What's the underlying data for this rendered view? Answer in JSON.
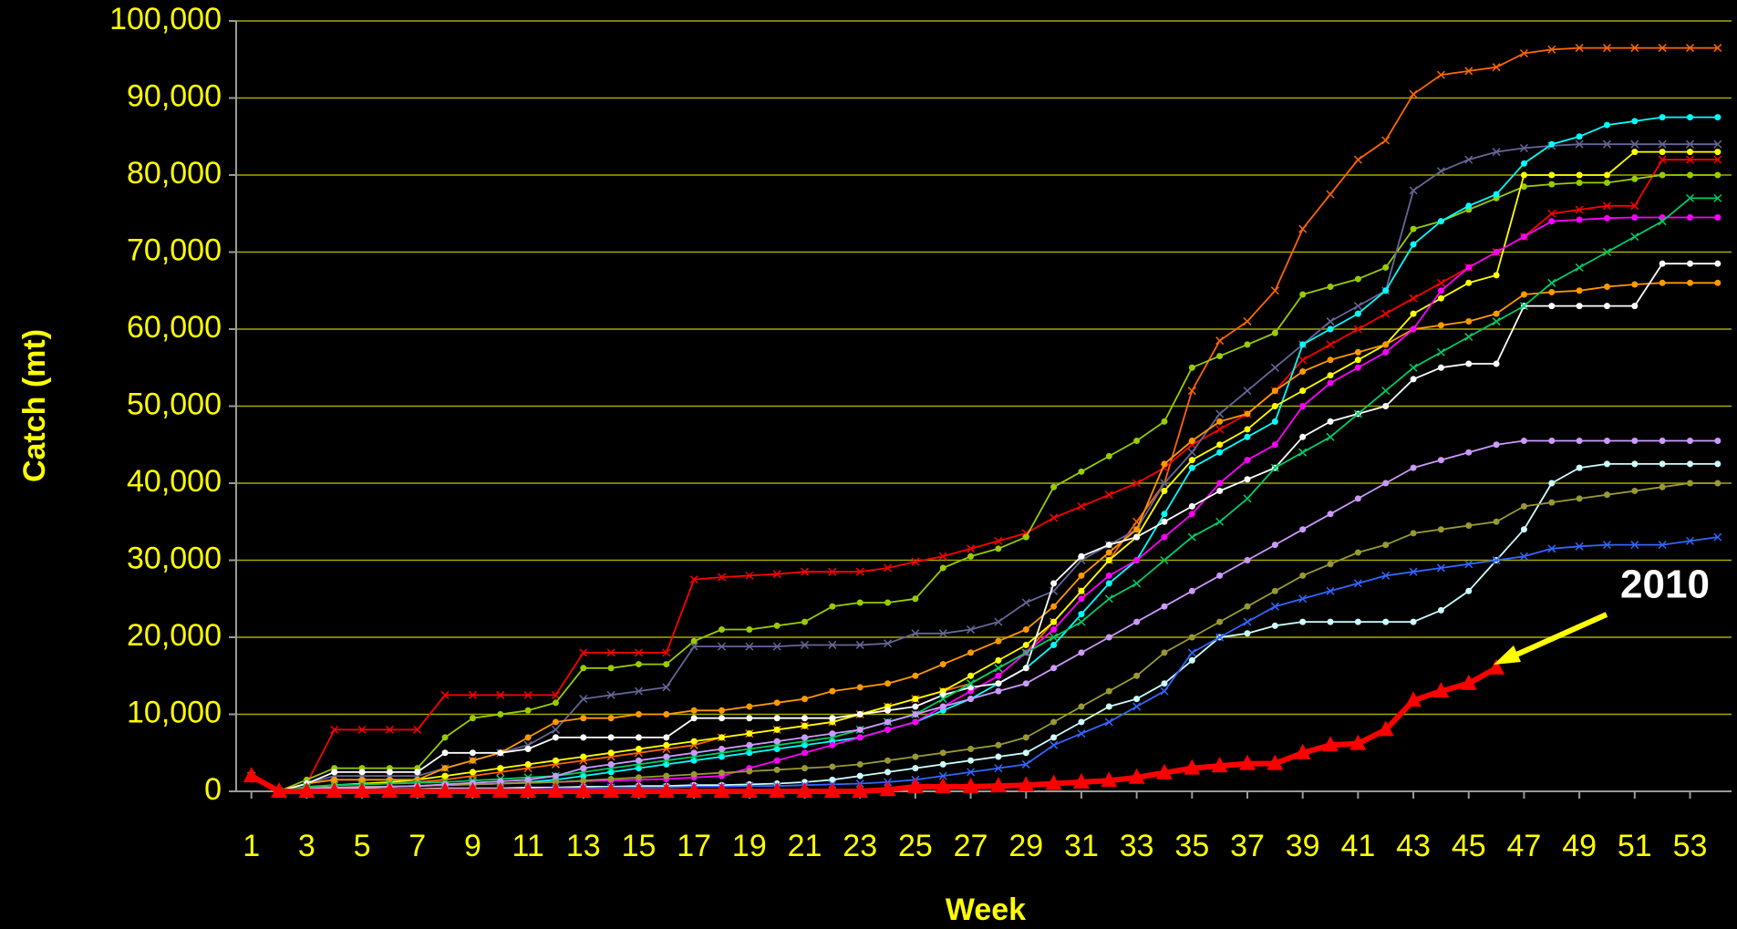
{
  "chart_data": {
    "type": "line",
    "ylabel": "Catch (mt)",
    "xlabel": "Week",
    "annotations": [
      {
        "text": "2010"
      }
    ],
    "grid": true,
    "x": [
      1,
      2,
      3,
      4,
      5,
      6,
      7,
      8,
      9,
      10,
      11,
      12,
      13,
      14,
      15,
      16,
      17,
      18,
      19,
      20,
      21,
      22,
      23,
      24,
      25,
      26,
      27,
      28,
      29,
      30,
      31,
      32,
      33,
      34,
      35,
      36,
      37,
      38,
      39,
      40,
      41,
      42,
      43,
      44,
      45,
      46,
      47,
      48,
      49,
      50,
      51,
      52,
      53,
      54
    ],
    "xlim": [
      0.45,
      54.5
    ],
    "xticks": [
      1,
      3,
      5,
      7,
      9,
      11,
      13,
      15,
      17,
      19,
      21,
      23,
      25,
      27,
      29,
      31,
      33,
      35,
      37,
      39,
      41,
      43,
      45,
      47,
      49,
      51,
      53
    ],
    "ylim": [
      0,
      100000
    ],
    "yticks": [
      0,
      {
        "value": 10000,
        "label": "10,000"
      },
      {
        "value": 20000,
        "label": "20,000"
      },
      {
        "value": 30000,
        "label": "30,000"
      },
      {
        "value": 40000,
        "label": "40,000"
      },
      {
        "value": 50000,
        "label": "50,000"
      },
      {
        "value": 60000,
        "label": "60,000"
      },
      {
        "value": 70000,
        "label": "70,000"
      },
      {
        "value": 80000,
        "label": "80,000"
      },
      {
        "value": 90000,
        "label": "90,000"
      },
      {
        "value": 100000,
        "label": "100,000"
      }
    ],
    "series": [
      {
        "color": "#ff6600",
        "marker": "cross",
        "values": [
          2000,
          0,
          500,
          800,
          900,
          1000,
          1200,
          1500,
          2000,
          2500,
          3000,
          3500,
          4000,
          4500,
          5000,
          5500,
          6000,
          7000,
          7500,
          8000,
          8500,
          9000,
          10000,
          11000,
          12000,
          13000,
          14000,
          16000,
          18000,
          22000,
          26000,
          30000,
          35000,
          40000,
          52000,
          58500,
          61000,
          65000,
          73000,
          77500,
          82000,
          84500,
          90500,
          93000,
          93500,
          94000,
          95800,
          96300,
          96500,
          96500,
          96500,
          96500,
          96500,
          96500
        ]
      },
      {
        "color": "#ff0000",
        "marker": "cross",
        "values": [
          2000,
          0,
          1000,
          8000,
          8000,
          8000,
          8000,
          12500,
          12500,
          12500,
          12500,
          12500,
          18000,
          18000,
          18000,
          18000,
          27500,
          27800,
          28000,
          28200,
          28500,
          28500,
          28500,
          29000,
          29800,
          30500,
          31500,
          32500,
          33500,
          35500,
          37000,
          38500,
          40000,
          42000,
          45000,
          47000,
          49000,
          52000,
          56000,
          58000,
          60000,
          62000,
          64000,
          66000,
          68000,
          70000,
          72000,
          75000,
          75500,
          76000,
          76000,
          82000,
          82000,
          82000
        ]
      },
      {
        "color": "#99cc00",
        "marker": "circle",
        "values": [
          2000,
          0,
          1500,
          3000,
          3000,
          3000,
          3000,
          7000,
          9500,
          10000,
          10500,
          11500,
          16000,
          16000,
          16500,
          16500,
          19500,
          21000,
          21000,
          21500,
          22000,
          24000,
          24500,
          24500,
          25000,
          29000,
          30500,
          31500,
          33000,
          39500,
          41500,
          43500,
          45500,
          48000,
          55000,
          56500,
          58000,
          59500,
          64500,
          65500,
          66500,
          68000,
          73000,
          74000,
          75500,
          77000,
          78500,
          78800,
          79000,
          79000,
          79500,
          80000,
          80000,
          80000
        ]
      },
      {
        "color": "#666699",
        "marker": "cross",
        "values": [
          2000,
          0,
          1000,
          2000,
          2000,
          2000,
          2000,
          3000,
          4000,
          5000,
          6000,
          8000,
          12000,
          12500,
          13000,
          13500,
          18800,
          18800,
          18800,
          18800,
          19000,
          19000,
          19000,
          19200,
          20500,
          20500,
          21000,
          22000,
          24500,
          26000,
          30000,
          32000,
          34000,
          40000,
          44000,
          49000,
          52000,
          55000,
          58000,
          61000,
          63000,
          65000,
          78000,
          80500,
          82000,
          83000,
          83500,
          83800,
          84000,
          84000,
          84000,
          84000,
          84000,
          84000
        ]
      },
      {
        "color": "#00ffff",
        "marker": "circle",
        "values": [
          2000,
          0,
          300,
          500,
          500,
          600,
          700,
          800,
          900,
          1000,
          1200,
          1500,
          2000,
          2500,
          3000,
          3500,
          4000,
          4500,
          5000,
          5500,
          6000,
          6500,
          7000,
          8000,
          9000,
          10500,
          12000,
          14000,
          16000,
          19000,
          23000,
          27000,
          30000,
          36000,
          42000,
          44000,
          46000,
          48000,
          58000,
          60000,
          62000,
          65000,
          71000,
          74000,
          76000,
          77500,
          81500,
          84000,
          85000,
          86500,
          87000,
          87500,
          87500,
          87500
        ]
      },
      {
        "color": "#ffff00",
        "marker": "circle",
        "values": [
          2000,
          0,
          500,
          800,
          1000,
          1200,
          1500,
          2000,
          2500,
          3000,
          3500,
          4000,
          4500,
          5000,
          5500,
          6000,
          6500,
          7000,
          7500,
          8000,
          8500,
          9000,
          10000,
          11000,
          12000,
          13000,
          15000,
          17000,
          19000,
          22000,
          26000,
          30000,
          33000,
          39000,
          43000,
          45000,
          47000,
          50000,
          52000,
          54000,
          56000,
          58000,
          62000,
          64000,
          66000,
          67000,
          80000,
          80000,
          80000,
          80000,
          83000,
          83000,
          83000,
          83000
        ]
      },
      {
        "color": "#ff9900",
        "marker": "circle",
        "values": [
          2000,
          0,
          1000,
          1500,
          1500,
          1500,
          1500,
          3000,
          4000,
          5000,
          7000,
          9000,
          9500,
          9500,
          10000,
          10000,
          10500,
          10500,
          11000,
          11500,
          12000,
          13000,
          13500,
          14000,
          15000,
          16500,
          18000,
          19500,
          21000,
          24000,
          28000,
          31000,
          34000,
          42500,
          45500,
          48000,
          49000,
          52000,
          54500,
          56000,
          57000,
          58000,
          60000,
          60500,
          61000,
          62000,
          64500,
          64800,
          65000,
          65500,
          65800,
          66000,
          66000,
          66000
        ]
      },
      {
        "color": "#ff00ff",
        "marker": "circle",
        "values": [
          2000,
          0,
          300,
          400,
          500,
          600,
          700,
          800,
          900,
          1000,
          1100,
          1200,
          1300,
          1400,
          1500,
          1600,
          1800,
          2000,
          3000,
          4000,
          5000,
          6000,
          7000,
          8000,
          9000,
          11000,
          13000,
          15000,
          18000,
          21000,
          25000,
          28000,
          30000,
          33000,
          36000,
          40000,
          43000,
          45000,
          50000,
          53000,
          55000,
          57000,
          60000,
          65000,
          68000,
          70000,
          72000,
          74000,
          74200,
          74400,
          74500,
          74500,
          74500,
          74500
        ]
      },
      {
        "color": "#ffffff",
        "marker": "circle",
        "values": [
          2000,
          0,
          1000,
          2500,
          2500,
          2500,
          2500,
          5000,
          5000,
          5000,
          5500,
          7000,
          7000,
          7000,
          7000,
          7000,
          9500,
          9500,
          9500,
          9500,
          9500,
          9500,
          10000,
          10500,
          11000,
          12500,
          13500,
          14000,
          16000,
          27000,
          30500,
          32000,
          33000,
          35000,
          37000,
          39000,
          40500,
          42000,
          46000,
          48000,
          49000,
          50000,
          53500,
          55000,
          55500,
          55500,
          63000,
          63000,
          63000,
          63000,
          63000,
          68500,
          68500,
          68500
        ]
      },
      {
        "color": "#ccffff",
        "marker": "circle",
        "values": [
          2000,
          0,
          200,
          300,
          300,
          300,
          300,
          400,
          400,
          400,
          500,
          500,
          600,
          600,
          700,
          700,
          800,
          800,
          900,
          1000,
          1200,
          1500,
          2000,
          2500,
          3000,
          3500,
          4000,
          4500,
          5000,
          7000,
          9000,
          11000,
          12000,
          14000,
          17000,
          20000,
          20500,
          21500,
          22000,
          22000,
          22000,
          22000,
          22000,
          23500,
          26000,
          30000,
          34000,
          40000,
          42000,
          42500,
          42500,
          42500,
          42500,
          42500
        ]
      },
      {
        "color": "#3366ff",
        "marker": "cross",
        "values": [
          2000,
          0,
          100,
          200,
          200,
          200,
          200,
          300,
          300,
          300,
          300,
          400,
          400,
          500,
          500,
          500,
          600,
          600,
          700,
          700,
          800,
          900,
          1000,
          1200,
          1500,
          2000,
          2500,
          3000,
          3500,
          6000,
          7500,
          9000,
          11000,
          13000,
          18000,
          20000,
          22000,
          24000,
          25000,
          26000,
          27000,
          28000,
          28500,
          29000,
          29500,
          30000,
          30500,
          31500,
          31800,
          32000,
          32000,
          32000,
          32500,
          33000
        ]
      },
      {
        "color": "#999933",
        "marker": "circle",
        "values": [
          2000,
          0,
          500,
          500,
          600,
          600,
          700,
          800,
          900,
          1000,
          1100,
          1200,
          1400,
          1600,
          1800,
          2000,
          2200,
          2400,
          2600,
          2800,
          3000,
          3200,
          3500,
          4000,
          4500,
          5000,
          5500,
          6000,
          7000,
          9000,
          11000,
          13000,
          15000,
          18000,
          20000,
          22000,
          24000,
          26000,
          28000,
          29500,
          31000,
          32000,
          33500,
          34000,
          34500,
          35000,
          37000,
          37500,
          38000,
          38500,
          39000,
          39500,
          40000,
          40000
        ]
      },
      {
        "color": "#00cc66",
        "marker": "cross",
        "values": [
          2000,
          0,
          600,
          800,
          900,
          1000,
          1100,
          1200,
          1400,
          1600,
          1800,
          2000,
          2500,
          3000,
          3500,
          4000,
          4500,
          5000,
          5500,
          6000,
          6500,
          7000,
          8000,
          9000,
          10000,
          12000,
          14000,
          16000,
          18000,
          20000,
          22000,
          25000,
          27000,
          30000,
          33000,
          35000,
          38000,
          42000,
          44000,
          46000,
          49000,
          52000,
          55000,
          57000,
          59000,
          61000,
          63000,
          66000,
          68000,
          70000,
          72000,
          74000,
          77000,
          77000
        ]
      },
      {
        "color": "#cc99ff",
        "marker": "circle",
        "values": [
          2000,
          0,
          300,
          500,
          500,
          600,
          700,
          900,
          1100,
          1300,
          1500,
          2000,
          3000,
          3500,
          4000,
          4500,
          5000,
          5500,
          6000,
          6500,
          7000,
          7500,
          8000,
          9000,
          10000,
          11000,
          12000,
          13000,
          14000,
          16000,
          18000,
          20000,
          22000,
          24000,
          26000,
          28000,
          30000,
          32000,
          34000,
          36000,
          38000,
          40000,
          42000,
          43000,
          44000,
          45000,
          45500,
          45500,
          45500,
          45500,
          45500,
          45500,
          45500,
          45500
        ]
      },
      {
        "color": "#ff0000",
        "marker": "triangle",
        "values": [
          2000,
          0,
          0,
          0,
          0,
          0,
          0,
          0,
          0,
          0,
          0,
          0,
          0,
          0,
          0,
          0,
          0,
          0,
          0,
          0,
          0,
          0,
          0,
          200,
          600,
          600,
          600,
          700,
          800,
          1000,
          1200,
          1400,
          1800,
          2400,
          3000,
          3300,
          3600,
          3600,
          5000,
          6000,
          6200,
          8000,
          11800,
          13000,
          14000,
          16000,
          null,
          null,
          null,
          null,
          null,
          null,
          null,
          null
        ]
      }
    ]
  }
}
